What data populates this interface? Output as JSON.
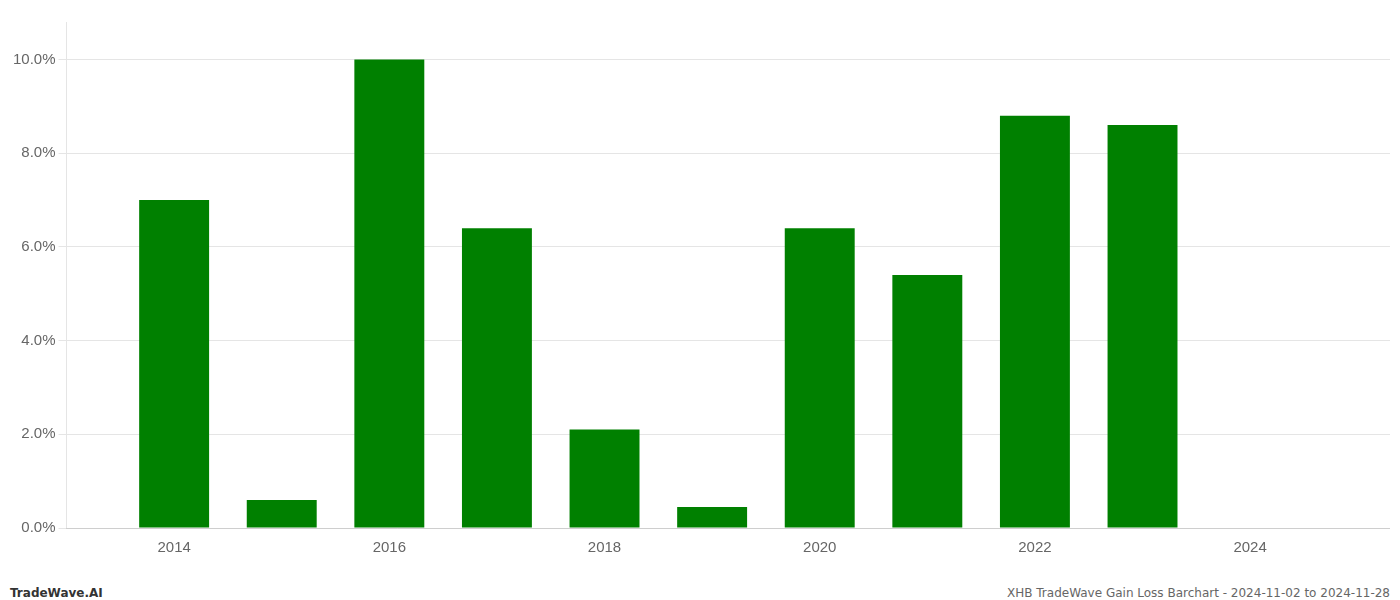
{
  "chart_data": {
    "type": "bar",
    "x": [
      2014,
      2015,
      2016,
      2017,
      2018,
      2019,
      2020,
      2021,
      2022,
      2023
    ],
    "values": [
      0.07,
      0.006,
      0.1,
      0.064,
      0.021,
      0.0045,
      0.064,
      0.054,
      0.088,
      0.086
    ],
    "color": "#008000",
    "xlim": [
      2013.0,
      2025.3
    ],
    "xticks": [
      2014,
      2016,
      2018,
      2020,
      2022,
      2024
    ],
    "ylim": [
      0,
      0.108
    ],
    "yticks": [
      {
        "value": 0.0,
        "label": "0.0%"
      },
      {
        "value": 0.02,
        "label": "2.0%"
      },
      {
        "value": 0.04,
        "label": "4.0%"
      },
      {
        "value": 0.06,
        "label": "6.0%"
      },
      {
        "value": 0.08,
        "label": "8.0%"
      },
      {
        "value": 0.1,
        "label": "10.0%"
      }
    ],
    "grid": true,
    "annotations": [
      "TradeWave.AI",
      "XHB TradeWave Gain Loss Barchart - 2024-11-02 to 2024-11-28"
    ]
  }
}
